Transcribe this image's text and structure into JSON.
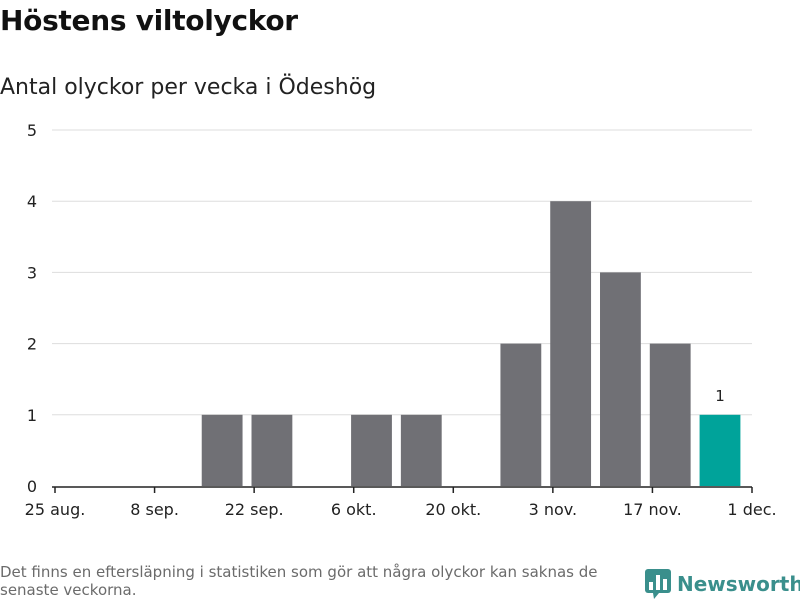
{
  "header": {
    "title": "Höstens viltolyckor",
    "subtitle": "Antal olyckor per vecka i Ödeshög"
  },
  "chart_data": {
    "type": "bar",
    "title": "",
    "xlabel": "",
    "ylabel": "",
    "ylim": [
      0,
      5
    ],
    "yticks": [
      0,
      1,
      2,
      3,
      4,
      5
    ],
    "xlim": [
      "2020-08-25",
      "2020-12-01"
    ],
    "xticks": [
      {
        "date": "2020-08-25",
        "label": "25 aug."
      },
      {
        "date": "2020-09-08",
        "label": "8 sep."
      },
      {
        "date": "2020-09-22",
        "label": "22 sep."
      },
      {
        "date": "2020-10-06",
        "label": "6 okt."
      },
      {
        "date": "2020-10-20",
        "label": "20 okt."
      },
      {
        "date": "2020-11-03",
        "label": "3 nov."
      },
      {
        "date": "2020-11-17",
        "label": "17 nov."
      },
      {
        "date": "2020-12-01",
        "label": "1 dec."
      }
    ],
    "grid": true,
    "bars": [
      {
        "week_start": "2020-09-14",
        "value": 1
      },
      {
        "week_start": "2020-09-21",
        "value": 1
      },
      {
        "week_start": "2020-10-05",
        "value": 1
      },
      {
        "week_start": "2020-10-12",
        "value": 1
      },
      {
        "week_start": "2020-10-26",
        "value": 2
      },
      {
        "week_start": "2020-11-02",
        "value": 4
      },
      {
        "week_start": "2020-11-09",
        "value": 3
      },
      {
        "week_start": "2020-11-16",
        "value": 2
      },
      {
        "week_start": "2020-11-23",
        "value": 1,
        "highlight": true,
        "data_label": "1"
      }
    ],
    "colors": {
      "bar": "#707075",
      "highlight": "#00a39a",
      "grid": "#dddddd",
      "axis": "#222222"
    }
  },
  "footer": {
    "note": "Det finns en eftersläpning i statistiken som gör att några olyckor kan saknas de senaste veckorna.",
    "brand": "Newsworthy",
    "brand_icon": "bar-chart-icon"
  }
}
